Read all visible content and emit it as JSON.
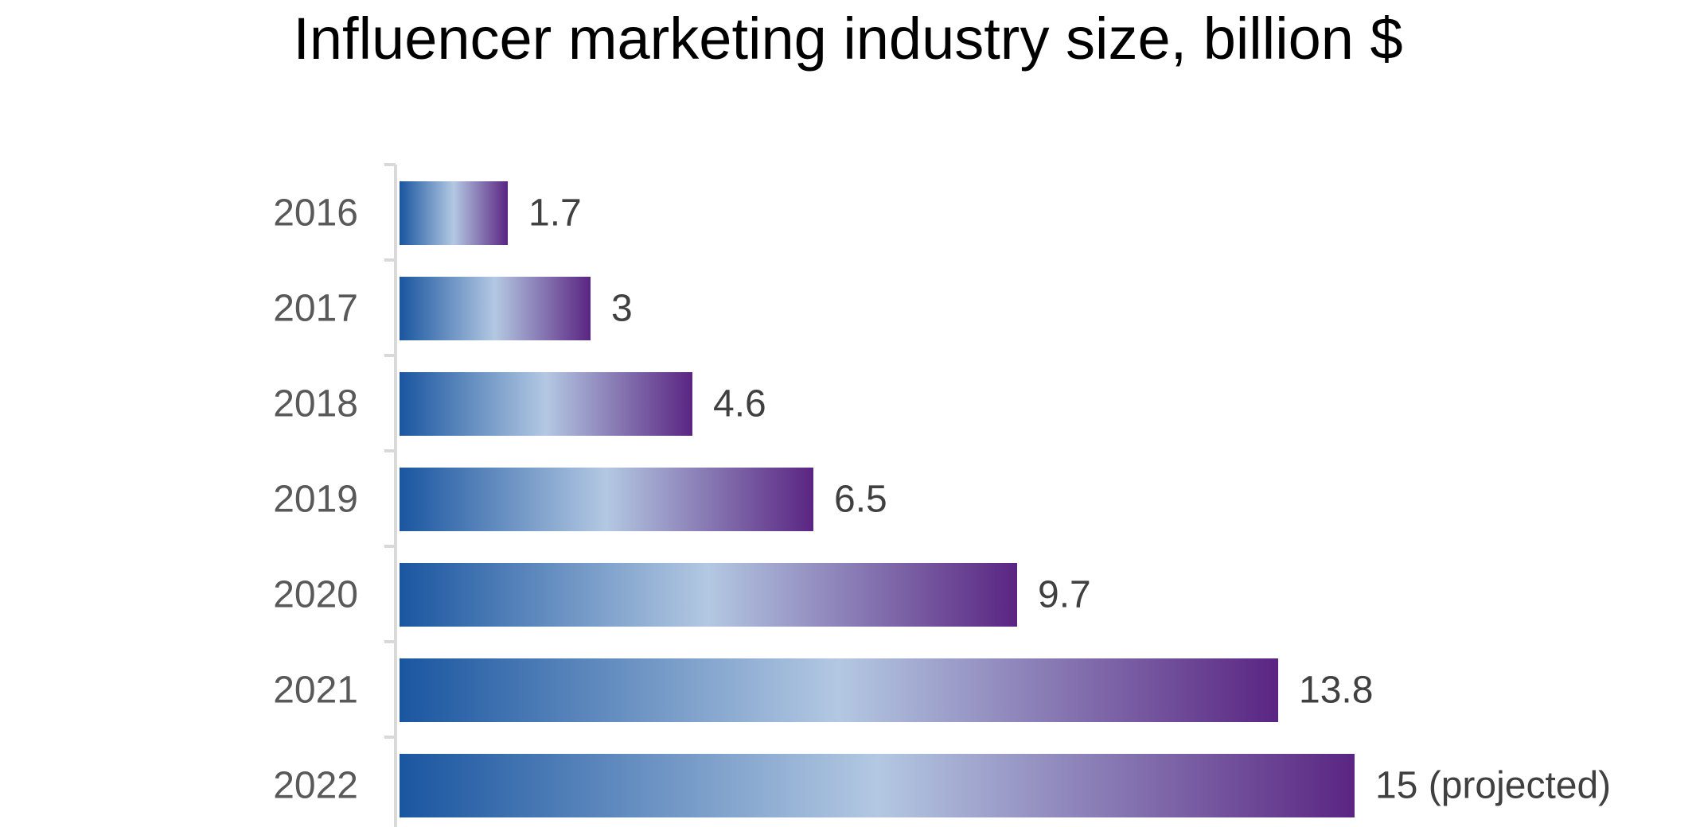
{
  "chart_data": {
    "type": "bar",
    "orientation": "horizontal",
    "title": "Influencer marketing industry size, billion $",
    "xlabel": "",
    "ylabel": "",
    "categories": [
      "2016",
      "2017",
      "2018",
      "2019",
      "2020",
      "2021",
      "2022"
    ],
    "values": [
      1.7,
      3,
      4.6,
      6.5,
      9.7,
      13.8,
      15
    ],
    "data_labels": [
      "1.7",
      "3",
      "4.6",
      "6.5",
      "9.7",
      "13.8",
      "15 (projected)"
    ],
    "xlim": [
      0,
      15
    ],
    "grid": false,
    "legend": "none",
    "colors": {
      "bar_gradient_start": "#1a56a0",
      "bar_gradient_mid": "#b3c8e2",
      "bar_gradient_end": "#5a2582",
      "axis_line": "#d9d9d9",
      "category_text": "#595959",
      "value_text": "#404040",
      "title_text": "#000000"
    }
  }
}
